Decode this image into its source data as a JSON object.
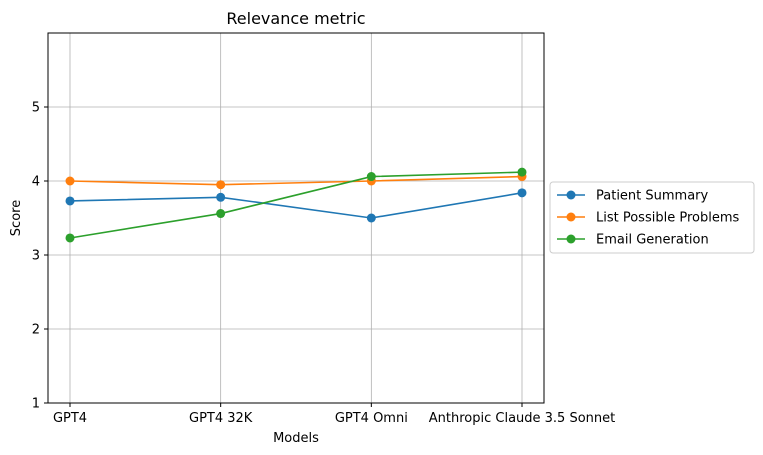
{
  "chart_data": {
    "type": "line",
    "title": "Relevance metric",
    "xlabel": "Models",
    "ylabel": "Score",
    "categories": [
      "GPT4",
      "GPT4 32K",
      "GPT4 Omni",
      "Anthropic Claude 3.5 Sonnet"
    ],
    "ylim": [
      1,
      6
    ],
    "yticks": [
      1,
      2,
      3,
      4,
      5
    ],
    "grid": true,
    "legend_position": "center-right-outside",
    "series": [
      {
        "name": "Patient Summary",
        "color": "#1f77b4",
        "values": [
          3.73,
          3.78,
          3.5,
          3.84
        ]
      },
      {
        "name": "List Possible Problems",
        "color": "#ff7f0e",
        "values": [
          4.0,
          3.95,
          4.0,
          4.06
        ]
      },
      {
        "name": "Email Generation",
        "color": "#2ca02c",
        "values": [
          3.23,
          3.56,
          4.06,
          4.12
        ]
      }
    ]
  }
}
